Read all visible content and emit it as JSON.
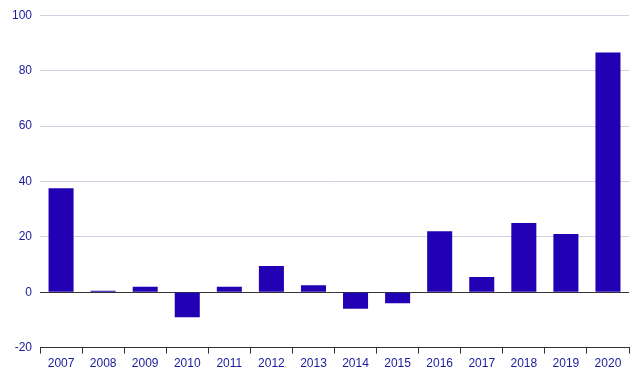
{
  "chart_data": {
    "type": "bar",
    "categories": [
      "2007",
      "2008",
      "2009",
      "2010",
      "2011",
      "2012",
      "2013",
      "2014",
      "2015",
      "2016",
      "2017",
      "2018",
      "2019",
      "2020"
    ],
    "values": [
      37.5,
      0.5,
      2,
      -9,
      2,
      9.5,
      2.5,
      -6,
      -4,
      22,
      5.5,
      25,
      21,
      86.5
    ],
    "color": "#2200b4",
    "ylim": [
      -20,
      100
    ],
    "yticks": [
      -20,
      0,
      20,
      40,
      60,
      80,
      100
    ],
    "grid": true
  }
}
